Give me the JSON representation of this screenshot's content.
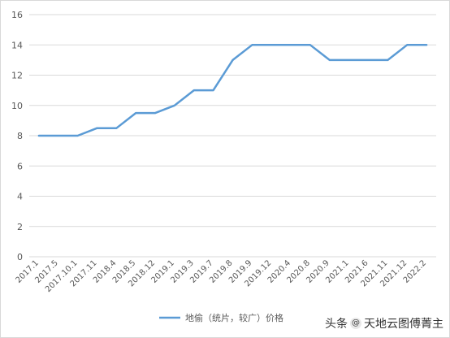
{
  "chart_data": {
    "type": "line",
    "title": "",
    "xlabel": "",
    "ylabel": "",
    "ylim": [
      0,
      16
    ],
    "yticks": [
      0,
      2,
      4,
      6,
      8,
      10,
      12,
      14,
      16
    ],
    "categories": [
      "2017.1",
      "2017.5",
      "2017.10.1",
      "2017.11",
      "2018.4",
      "2018.5",
      "2018.12",
      "2019.1",
      "2019.3",
      "2019.7",
      "2019.8",
      "2019.9",
      "2019.12",
      "2020.4",
      "2020.8",
      "2020.9",
      "2021.1",
      "2021.6",
      "2021.11",
      "2021.12",
      "2022.2"
    ],
    "series": [
      {
        "name": "地偷（统片，较广）价格",
        "values": [
          8,
          8,
          8,
          8.5,
          8.5,
          9.5,
          9.5,
          10,
          11,
          11,
          13,
          14,
          14,
          14,
          14,
          13,
          13,
          13,
          13,
          14,
          14
        ]
      }
    ],
    "grid": true,
    "legend": "bottom",
    "line_color": "#5b9bd5"
  },
  "watermark": {
    "prefix": "头条",
    "at": "@",
    "text": "天地云图傅菁主"
  }
}
